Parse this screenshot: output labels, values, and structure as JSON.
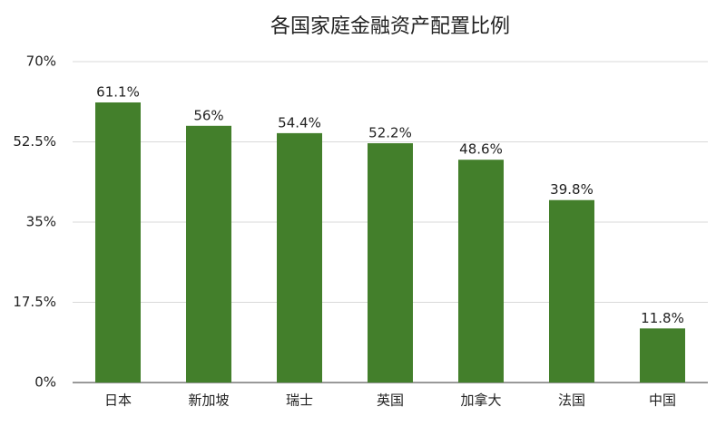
{
  "chart_data": {
    "type": "bar",
    "title": "各国家庭金融资产配置比例",
    "categories": [
      "日本",
      "新加坡",
      "瑞士",
      "英国",
      "加拿大",
      "法国",
      "中国"
    ],
    "values": [
      61.1,
      56,
      54.4,
      52.2,
      48.6,
      39.8,
      11.8
    ],
    "value_labels": [
      "61.1%",
      "56%",
      "54.4%",
      "52.2%",
      "48.6%",
      "39.8%",
      "11.8%"
    ],
    "color": "#437f2b",
    "ylim": [
      0,
      70
    ],
    "yticks": [
      {
        "value": 0,
        "label": "0%"
      },
      {
        "value": 17.5,
        "label": "17.5%"
      },
      {
        "value": 35,
        "label": "35%"
      },
      {
        "value": 52.5,
        "label": "52.5%"
      },
      {
        "value": 70,
        "label": "70%"
      }
    ],
    "grid": true
  }
}
